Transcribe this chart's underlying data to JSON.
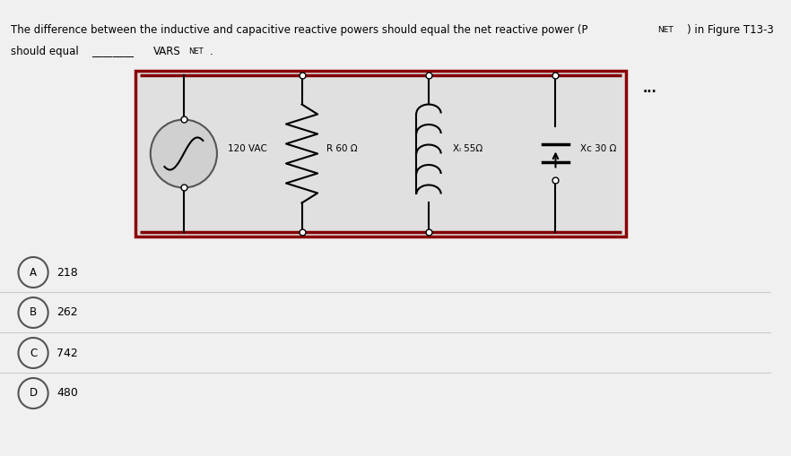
{
  "title_line1": "The difference between the inductive and capacitive reactive powers should equal the net reactive power (P",
  "title_NET": "NET",
  "title_line1_end": ") in Figure T13-3",
  "title_line2_start": "should equal",
  "title_blank": "________",
  "title_VARS": "VARS",
  "title_NET2": "NET",
  "title_dot": ".",
  "bg_color": "#f0f0f0",
  "circuit_bg": "#e8e8e8",
  "circuit_border": "#8b0000",
  "circuit_border2": "#cc0000",
  "source_label": "120 VAC",
  "r_label": "R 60 Ω",
  "xl_label": "Xₗ 55Ω",
  "xc_label": "Xc 30 Ω",
  "dots": "...",
  "choices": [
    {
      "letter": "A",
      "value": "218"
    },
    {
      "letter": "B",
      "value": "262"
    },
    {
      "letter": "C",
      "value": "742"
    },
    {
      "letter": "D",
      "value": "480"
    }
  ],
  "fig_width": 8.82,
  "fig_height": 5.09,
  "dpi": 100
}
